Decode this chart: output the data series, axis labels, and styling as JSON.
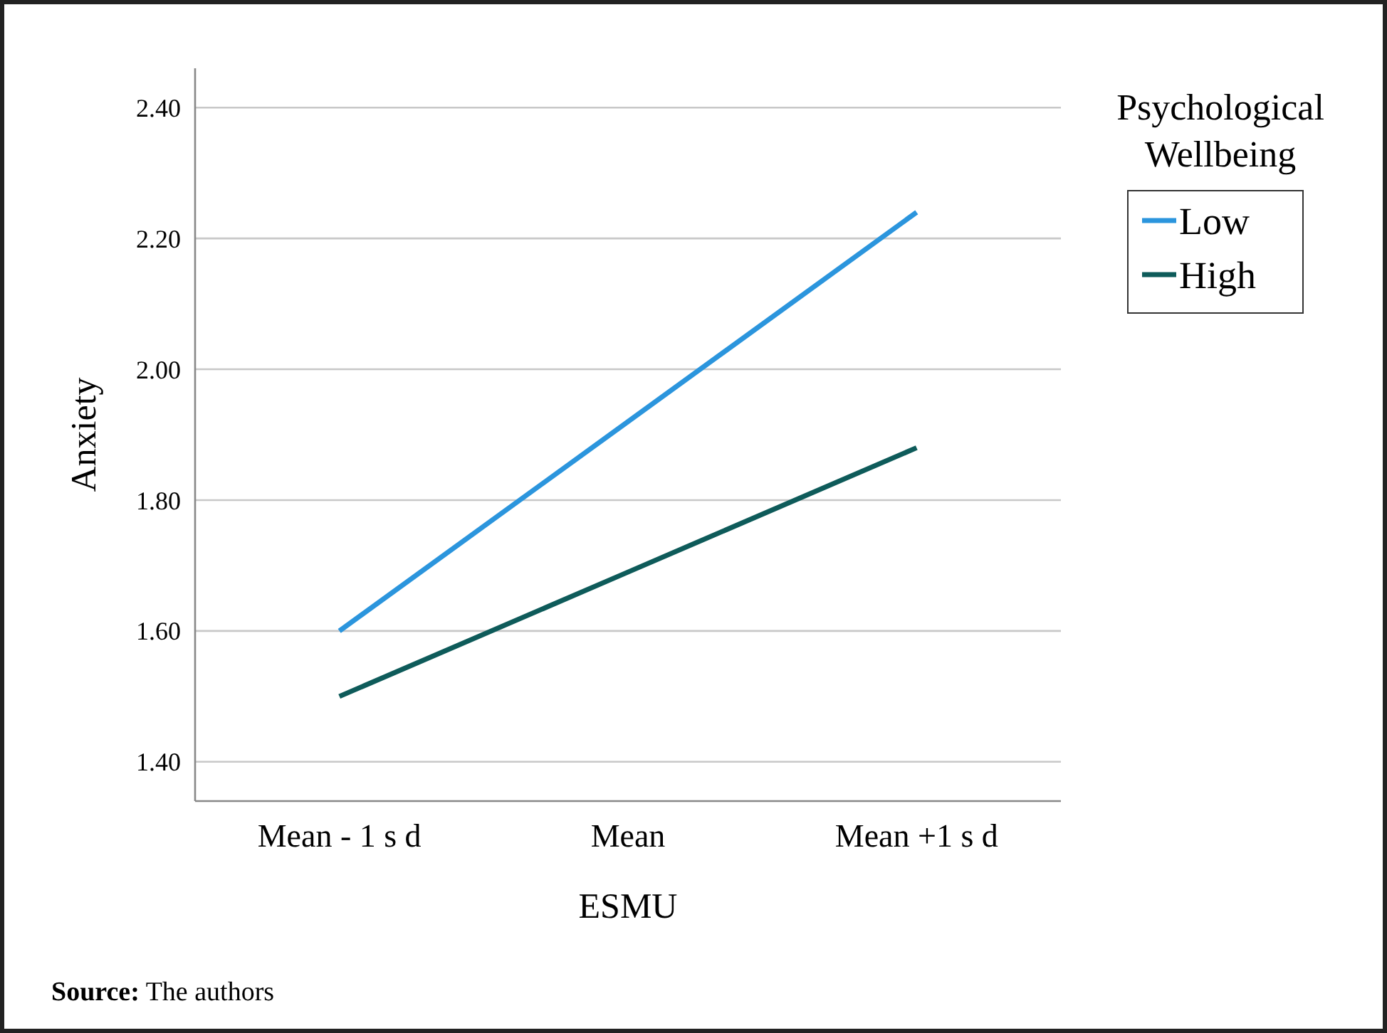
{
  "chart_data": {
    "type": "line",
    "xlabel": "ESMU",
    "ylabel": "Anxiety",
    "legend_title": "Psychological Wellbeing",
    "categories": [
      "Mean - 1 s d",
      "Mean",
      "Mean +1 s d"
    ],
    "series": [
      {
        "name": "Low",
        "color": "#2b95dd",
        "values": [
          1.6,
          1.92,
          2.24
        ]
      },
      {
        "name": "High",
        "color": "#0e5b5a",
        "values": [
          1.5,
          1.69,
          1.88
        ]
      }
    ],
    "ylim": [
      1.34,
      2.46
    ],
    "yticks": [
      {
        "value": 1.4,
        "label": "1.40"
      },
      {
        "value": 1.6,
        "label": "1.60"
      },
      {
        "value": 1.8,
        "label": "1.80"
      },
      {
        "value": 2.0,
        "label": "2.00"
      },
      {
        "value": 2.2,
        "label": "2.20"
      },
      {
        "value": 2.4,
        "label": "2.40"
      }
    ],
    "grid": "y",
    "legend": "top right",
    "marker": "none",
    "line_style": "solid",
    "annotations": [
      "Source: The authors"
    ]
  }
}
